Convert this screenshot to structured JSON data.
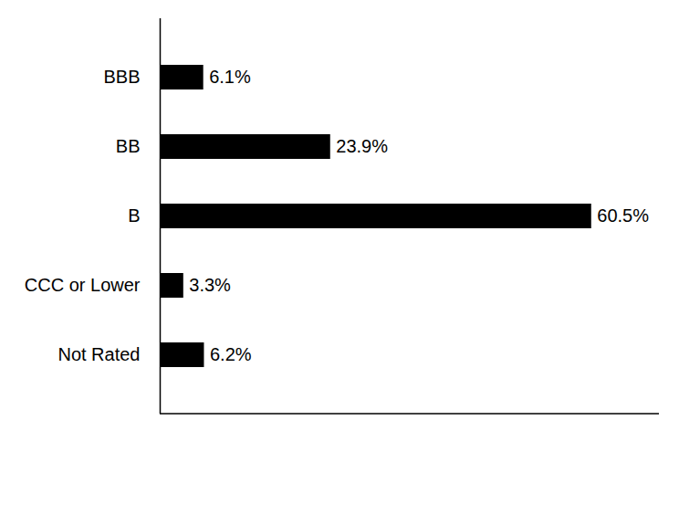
{
  "chart_data": {
    "type": "bar",
    "orientation": "horizontal",
    "categories": [
      "BBB",
      "BB",
      "B",
      "CCC or Lower",
      "Not Rated"
    ],
    "values": [
      6.1,
      23.9,
      60.5,
      3.3,
      6.2
    ],
    "value_labels": [
      "6.1%",
      "23.9%",
      "60.5%",
      "3.3%",
      "6.2%"
    ],
    "color": "#000000",
    "xlim": [
      0,
      70
    ],
    "xticks": [],
    "grid": false,
    "data_labels": true,
    "tick_labels": "y"
  }
}
